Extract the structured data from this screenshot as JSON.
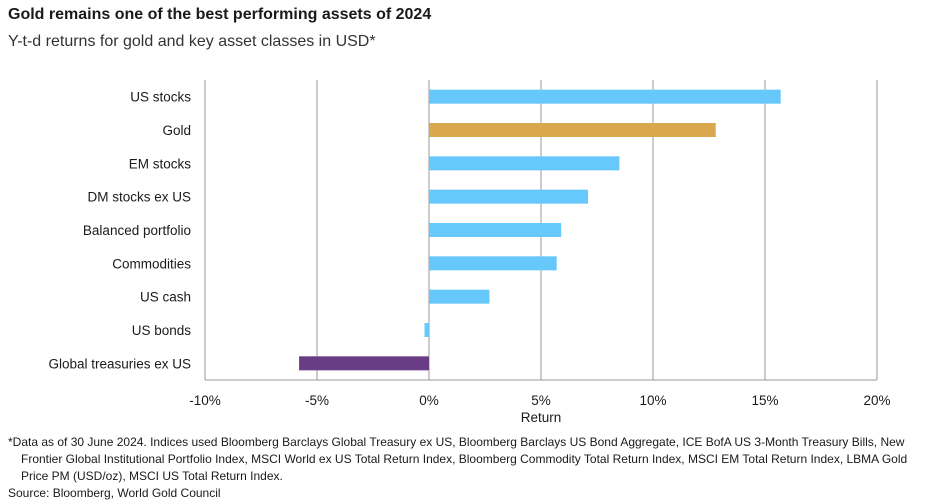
{
  "title": "Gold remains one of the best performing assets of 2024",
  "subtitle": "Y-t-d returns for gold and key asset classes in USD*",
  "colors": {
    "default_bar": "#66c8fb",
    "gold_bar": "#d9a84e",
    "treasuries_bar": "#6b3c86",
    "grid": "#999999"
  },
  "chart_data": {
    "type": "bar",
    "orientation": "horizontal",
    "categories": [
      "US stocks",
      "Gold",
      "EM stocks",
      "DM stocks ex US",
      "Balanced portfolio",
      "Commodities",
      "US cash",
      "US bonds",
      "Global treasuries ex US"
    ],
    "values": [
      15.7,
      12.8,
      8.5,
      7.1,
      5.9,
      5.7,
      2.7,
      -0.2,
      -5.8
    ],
    "bar_colors": [
      "#66c8fb",
      "#d9a84e",
      "#66c8fb",
      "#66c8fb",
      "#66c8fb",
      "#66c8fb",
      "#66c8fb",
      "#66c8fb",
      "#6b3c86"
    ],
    "xlabel": "Return",
    "xlim": [
      -10,
      20
    ],
    "xticks": [
      -10,
      -5,
      0,
      5,
      10,
      15,
      20
    ],
    "xtick_labels": [
      "-10%",
      "-5%",
      "0%",
      "5%",
      "10%",
      "15%",
      "20%"
    ],
    "grid": true
  },
  "footnote": {
    "text": "*Data as of 30 June 2024. Indices used Bloomberg Barclays Global Treasury ex US, Bloomberg Barclays US Bond Aggregate, ICE BofA US 3-Month Treasury Bills, New Frontier Global Institutional Portfolio Index, MSCI World ex US Total Return Index, Bloomberg Commodity Total Return Index, MSCI EM Total Return Index, LBMA Gold Price PM (USD/oz), MSCI US Total Return Index.",
    "source": "Source: Bloomberg, World Gold Council"
  }
}
